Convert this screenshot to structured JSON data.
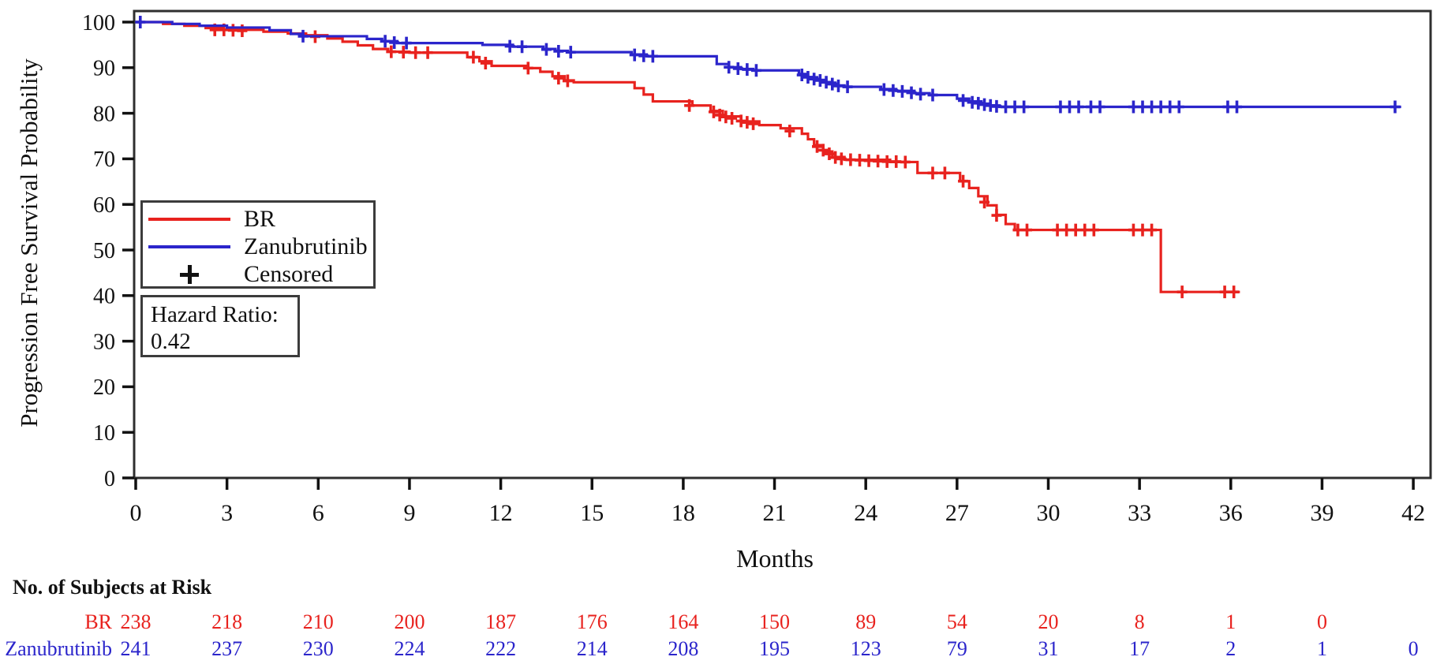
{
  "figure": {
    "y_axis_title": "Progression Free Survival Probability",
    "x_axis_title": "Months",
    "risk_table_title": "No. of Subjects at Risk",
    "hazard_ratio_label": "Hazard Ratio:",
    "hazard_ratio_value": "0.42",
    "legend": {
      "items": [
        {
          "label": "BR",
          "type": "line",
          "color": "#e8221e"
        },
        {
          "label": "Zanubrutinib",
          "type": "line",
          "color": "#2b25cb"
        },
        {
          "label": "Censored",
          "type": "plus",
          "color": "#111111"
        }
      ]
    }
  },
  "chart_data": {
    "type": "line",
    "subtype": "kaplan-meier-step",
    "title": "",
    "xlabel": "Months",
    "ylabel": "Progression Free Survival Probability",
    "x_ticks": [
      0,
      3,
      6,
      9,
      12,
      15,
      18,
      21,
      24,
      27,
      30,
      33,
      36,
      39,
      42
    ],
    "y_ticks": [
      0,
      10,
      20,
      30,
      40,
      50,
      60,
      70,
      80,
      90,
      100
    ],
    "xlim": [
      0,
      42.6
    ],
    "ylim": [
      0,
      102.5
    ],
    "grid": false,
    "legend_position": "inside-left",
    "annotation": {
      "label": "Hazard Ratio:",
      "value": "0.42"
    },
    "axis_color": "#2f2f2f",
    "tick_text_color": "#111111",
    "series": [
      {
        "name": "BR",
        "color": "#e8221e",
        "end_time": 36.3,
        "steps": [
          [
            0,
            100
          ],
          [
            0.9,
            99.6
          ],
          [
            1.6,
            99.2
          ],
          [
            2.3,
            98.7
          ],
          [
            2.9,
            98.3
          ],
          [
            4.2,
            97.9
          ],
          [
            5.0,
            97.5
          ],
          [
            5.6,
            97.1
          ],
          [
            6.3,
            96.4
          ],
          [
            6.8,
            95.7
          ],
          [
            7.3,
            94.9
          ],
          [
            7.8,
            94.1
          ],
          [
            8.3,
            93.5
          ],
          [
            9.0,
            93.3
          ],
          [
            10.9,
            92.3
          ],
          [
            11.3,
            91.4
          ],
          [
            11.7,
            90.4
          ],
          [
            12.9,
            89.9
          ],
          [
            13.3,
            89.1
          ],
          [
            13.7,
            88.1
          ],
          [
            14.1,
            87.2
          ],
          [
            14.4,
            86.8
          ],
          [
            16.4,
            85.5
          ],
          [
            16.7,
            84.1
          ],
          [
            17.0,
            82.6
          ],
          [
            18.3,
            81.7
          ],
          [
            18.9,
            80.5
          ],
          [
            19.3,
            79.3
          ],
          [
            19.9,
            78.2
          ],
          [
            20.5,
            77.4
          ],
          [
            21.2,
            76.7
          ],
          [
            21.9,
            75.5
          ],
          [
            22.1,
            74.3
          ],
          [
            22.3,
            73.0
          ],
          [
            22.6,
            71.6
          ],
          [
            22.9,
            70.4
          ],
          [
            23.3,
            69.8
          ],
          [
            24.8,
            69.3
          ],
          [
            25.7,
            66.9
          ],
          [
            27.1,
            65.1
          ],
          [
            27.4,
            63.6
          ],
          [
            27.7,
            61.8
          ],
          [
            28.0,
            59.8
          ],
          [
            28.3,
            57.7
          ],
          [
            28.6,
            55.7
          ],
          [
            28.9,
            54.4
          ],
          [
            33.7,
            40.8
          ]
        ],
        "censors": [
          [
            2.6,
            98.3
          ],
          [
            2.9,
            98.3
          ],
          [
            3.2,
            98.2
          ],
          [
            3.5,
            98.1
          ],
          [
            5.9,
            96.8
          ],
          [
            8.4,
            93.5
          ],
          [
            8.8,
            93.4
          ],
          [
            9.2,
            93.3
          ],
          [
            9.6,
            93.3
          ],
          [
            11.1,
            92.3
          ],
          [
            11.5,
            91.0
          ],
          [
            12.9,
            89.9
          ],
          [
            13.9,
            87.7
          ],
          [
            14.2,
            87.1
          ],
          [
            18.2,
            81.7
          ],
          [
            19.0,
            80.3
          ],
          [
            19.2,
            79.6
          ],
          [
            19.4,
            79.2
          ],
          [
            19.6,
            78.9
          ],
          [
            19.9,
            78.3
          ],
          [
            20.1,
            78.0
          ],
          [
            20.3,
            77.7
          ],
          [
            21.5,
            76.1
          ],
          [
            22.4,
            72.7
          ],
          [
            22.6,
            71.9
          ],
          [
            22.8,
            71.1
          ],
          [
            23.0,
            70.3
          ],
          [
            23.2,
            70.0
          ],
          [
            23.5,
            69.8
          ],
          [
            23.8,
            69.7
          ],
          [
            24.1,
            69.6
          ],
          [
            24.4,
            69.5
          ],
          [
            24.7,
            69.4
          ],
          [
            25.0,
            69.4
          ],
          [
            25.3,
            69.3
          ],
          [
            26.2,
            66.9
          ],
          [
            26.6,
            66.9
          ],
          [
            27.2,
            65.1
          ],
          [
            27.9,
            60.5
          ],
          [
            28.3,
            57.6
          ],
          [
            29.0,
            54.4
          ],
          [
            29.3,
            54.4
          ],
          [
            30.3,
            54.4
          ],
          [
            30.6,
            54.4
          ],
          [
            30.9,
            54.4
          ],
          [
            31.2,
            54.4
          ],
          [
            31.5,
            54.4
          ],
          [
            32.8,
            54.4
          ],
          [
            33.1,
            54.4
          ],
          [
            33.4,
            54.4
          ],
          [
            34.4,
            40.8
          ],
          [
            35.8,
            40.8
          ],
          [
            36.1,
            40.8
          ]
        ]
      },
      {
        "name": "Zanubrutinib",
        "color": "#2b25cb",
        "end_time": 41.6,
        "steps": [
          [
            0,
            100
          ],
          [
            1.2,
            99.6
          ],
          [
            2.1,
            99.2
          ],
          [
            3.0,
            98.8
          ],
          [
            4.4,
            98.2
          ],
          [
            5.1,
            97.4
          ],
          [
            5.5,
            96.9
          ],
          [
            7.6,
            96.3
          ],
          [
            8.1,
            95.8
          ],
          [
            8.6,
            95.4
          ],
          [
            11.4,
            95.0
          ],
          [
            12.4,
            94.6
          ],
          [
            13.4,
            94.1
          ],
          [
            13.8,
            93.7
          ],
          [
            14.2,
            93.4
          ],
          [
            16.3,
            92.9
          ],
          [
            16.8,
            92.5
          ],
          [
            19.1,
            90.8
          ],
          [
            19.5,
            90.1
          ],
          [
            19.9,
            89.7
          ],
          [
            20.3,
            89.4
          ],
          [
            21.8,
            88.6
          ],
          [
            22.1,
            87.9
          ],
          [
            22.4,
            87.3
          ],
          [
            22.7,
            86.7
          ],
          [
            23.0,
            86.1
          ],
          [
            23.3,
            85.8
          ],
          [
            24.5,
            85.3
          ],
          [
            25.0,
            84.9
          ],
          [
            25.6,
            84.4
          ],
          [
            26.1,
            84.0
          ],
          [
            27.0,
            83.2
          ],
          [
            27.4,
            82.6
          ],
          [
            27.8,
            82.1
          ],
          [
            28.1,
            81.7
          ],
          [
            28.4,
            81.4
          ]
        ],
        "censors": [
          [
            0.15,
            100
          ],
          [
            5.5,
            96.9
          ],
          [
            8.2,
            95.8
          ],
          [
            8.5,
            95.5
          ],
          [
            8.9,
            95.4
          ],
          [
            12.3,
            94.7
          ],
          [
            12.7,
            94.6
          ],
          [
            13.5,
            94.0
          ],
          [
            13.9,
            93.6
          ],
          [
            14.3,
            93.4
          ],
          [
            16.4,
            92.8
          ],
          [
            16.7,
            92.6
          ],
          [
            17.0,
            92.5
          ],
          [
            19.5,
            90.1
          ],
          [
            19.8,
            89.8
          ],
          [
            20.1,
            89.6
          ],
          [
            20.4,
            89.4
          ],
          [
            21.9,
            88.4
          ],
          [
            22.1,
            87.9
          ],
          [
            22.3,
            87.5
          ],
          [
            22.5,
            87.2
          ],
          [
            22.7,
            86.8
          ],
          [
            22.9,
            86.4
          ],
          [
            23.1,
            86.0
          ],
          [
            23.4,
            85.8
          ],
          [
            24.6,
            85.2
          ],
          [
            24.9,
            85.0
          ],
          [
            25.2,
            84.8
          ],
          [
            25.5,
            84.5
          ],
          [
            25.8,
            84.2
          ],
          [
            26.2,
            84.0
          ],
          [
            27.2,
            82.8
          ],
          [
            27.5,
            82.4
          ],
          [
            27.7,
            82.2
          ],
          [
            27.9,
            81.9
          ],
          [
            28.1,
            81.7
          ],
          [
            28.3,
            81.5
          ],
          [
            28.6,
            81.4
          ],
          [
            28.9,
            81.4
          ],
          [
            29.2,
            81.4
          ],
          [
            30.4,
            81.4
          ],
          [
            30.7,
            81.4
          ],
          [
            31.0,
            81.4
          ],
          [
            31.4,
            81.4
          ],
          [
            31.7,
            81.4
          ],
          [
            32.8,
            81.4
          ],
          [
            33.1,
            81.4
          ],
          [
            33.4,
            81.4
          ],
          [
            33.7,
            81.4
          ],
          [
            34.0,
            81.4
          ],
          [
            34.3,
            81.4
          ],
          [
            35.9,
            81.4
          ],
          [
            36.2,
            81.4
          ],
          [
            41.4,
            81.4
          ]
        ]
      }
    ],
    "risk_table": {
      "title": "No. of Subjects at Risk",
      "time_points": [
        0,
        3,
        6,
        9,
        12,
        15,
        18,
        21,
        24,
        27,
        30,
        33,
        36,
        39,
        42
      ],
      "rows": [
        {
          "name": "BR",
          "color": "#e8221e",
          "values": [
            238,
            218,
            210,
            200,
            187,
            176,
            164,
            150,
            89,
            54,
            20,
            8,
            1,
            0
          ]
        },
        {
          "name": "Zanubrutinib",
          "color": "#2b25cb",
          "values": [
            241,
            237,
            230,
            224,
            222,
            214,
            208,
            195,
            123,
            79,
            31,
            17,
            2,
            1,
            0
          ]
        }
      ]
    }
  }
}
